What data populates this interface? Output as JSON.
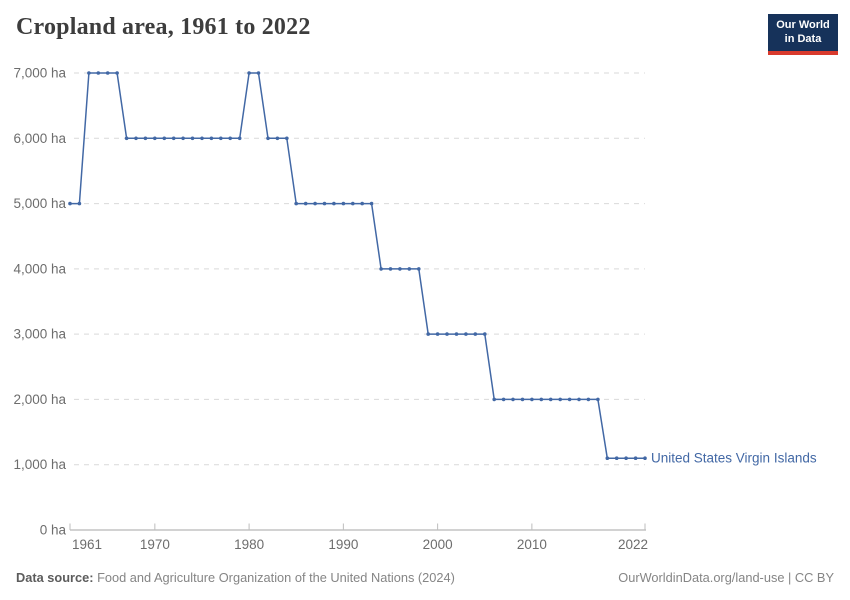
{
  "header": {
    "title": "Cropland area, 1961 to 2022",
    "logo": {
      "line1": "Our World",
      "line2": "in Data"
    }
  },
  "chart_data": {
    "type": "line",
    "title": "Cropland area, 1961 to 2022",
    "xlabel": "",
    "ylabel": "",
    "unit": "ha",
    "grid": "horizontal-dashed",
    "legend_position": "end-of-line-label",
    "line_color": "#4268a5",
    "ylim": [
      0,
      7000
    ],
    "yticks": [
      {
        "value": 0,
        "label": "0 ha"
      },
      {
        "value": 1000,
        "label": "1,000 ha"
      },
      {
        "value": 2000,
        "label": "2,000 ha"
      },
      {
        "value": 3000,
        "label": "3,000 ha"
      },
      {
        "value": 4000,
        "label": "4,000 ha"
      },
      {
        "value": 5000,
        "label": "5,000 ha"
      },
      {
        "value": 6000,
        "label": "6,000 ha"
      },
      {
        "value": 7000,
        "label": "7,000 ha"
      }
    ],
    "xticks": [
      {
        "value": 1961,
        "label": "1961"
      },
      {
        "value": 1970,
        "label": "1970"
      },
      {
        "value": 1980,
        "label": "1980"
      },
      {
        "value": 1990,
        "label": "1990"
      },
      {
        "value": 2000,
        "label": "2000"
      },
      {
        "value": 2010,
        "label": "2010"
      },
      {
        "value": 2022,
        "label": "2022"
      }
    ],
    "series": [
      {
        "name": "United States Virgin Islands",
        "x": [
          1961,
          1962,
          1963,
          1964,
          1965,
          1966,
          1967,
          1968,
          1969,
          1970,
          1971,
          1972,
          1973,
          1974,
          1975,
          1976,
          1977,
          1978,
          1979,
          1980,
          1981,
          1982,
          1983,
          1984,
          1985,
          1986,
          1987,
          1988,
          1989,
          1990,
          1991,
          1992,
          1993,
          1994,
          1995,
          1996,
          1997,
          1998,
          1999,
          2000,
          2001,
          2002,
          2003,
          2004,
          2005,
          2006,
          2007,
          2008,
          2009,
          2010,
          2011,
          2012,
          2013,
          2014,
          2015,
          2016,
          2017,
          2018,
          2019,
          2020,
          2021,
          2022
        ],
        "values": [
          5000,
          5000,
          7000,
          7000,
          7000,
          7000,
          6000,
          6000,
          6000,
          6000,
          6000,
          6000,
          6000,
          6000,
          6000,
          6000,
          6000,
          6000,
          6000,
          7000,
          7000,
          6000,
          6000,
          6000,
          5000,
          5000,
          5000,
          5000,
          5000,
          5000,
          5000,
          5000,
          5000,
          4000,
          4000,
          4000,
          4000,
          4000,
          3000,
          3000,
          3000,
          3000,
          3000,
          3000,
          3000,
          2000,
          2000,
          2000,
          2000,
          2000,
          2000,
          2000,
          2000,
          2000,
          2000,
          2000,
          2000,
          1100,
          1100,
          1100,
          1100,
          1100
        ]
      }
    ]
  },
  "colors": {
    "accent": "#4268a5",
    "grid": "#d9d9d9",
    "axis": "#a6a6a6",
    "tick_mark": "#bdbdbd",
    "tick_label": "#6d6d6d",
    "logo_bg": "#16325a",
    "logo_bar": "#d93a2d"
  },
  "footer": {
    "source_label": "Data source:",
    "source_text": " Food and Agriculture Organization of the United Nations (2024)",
    "attribution": "OurWorldinData.org/land-use | CC BY"
  }
}
